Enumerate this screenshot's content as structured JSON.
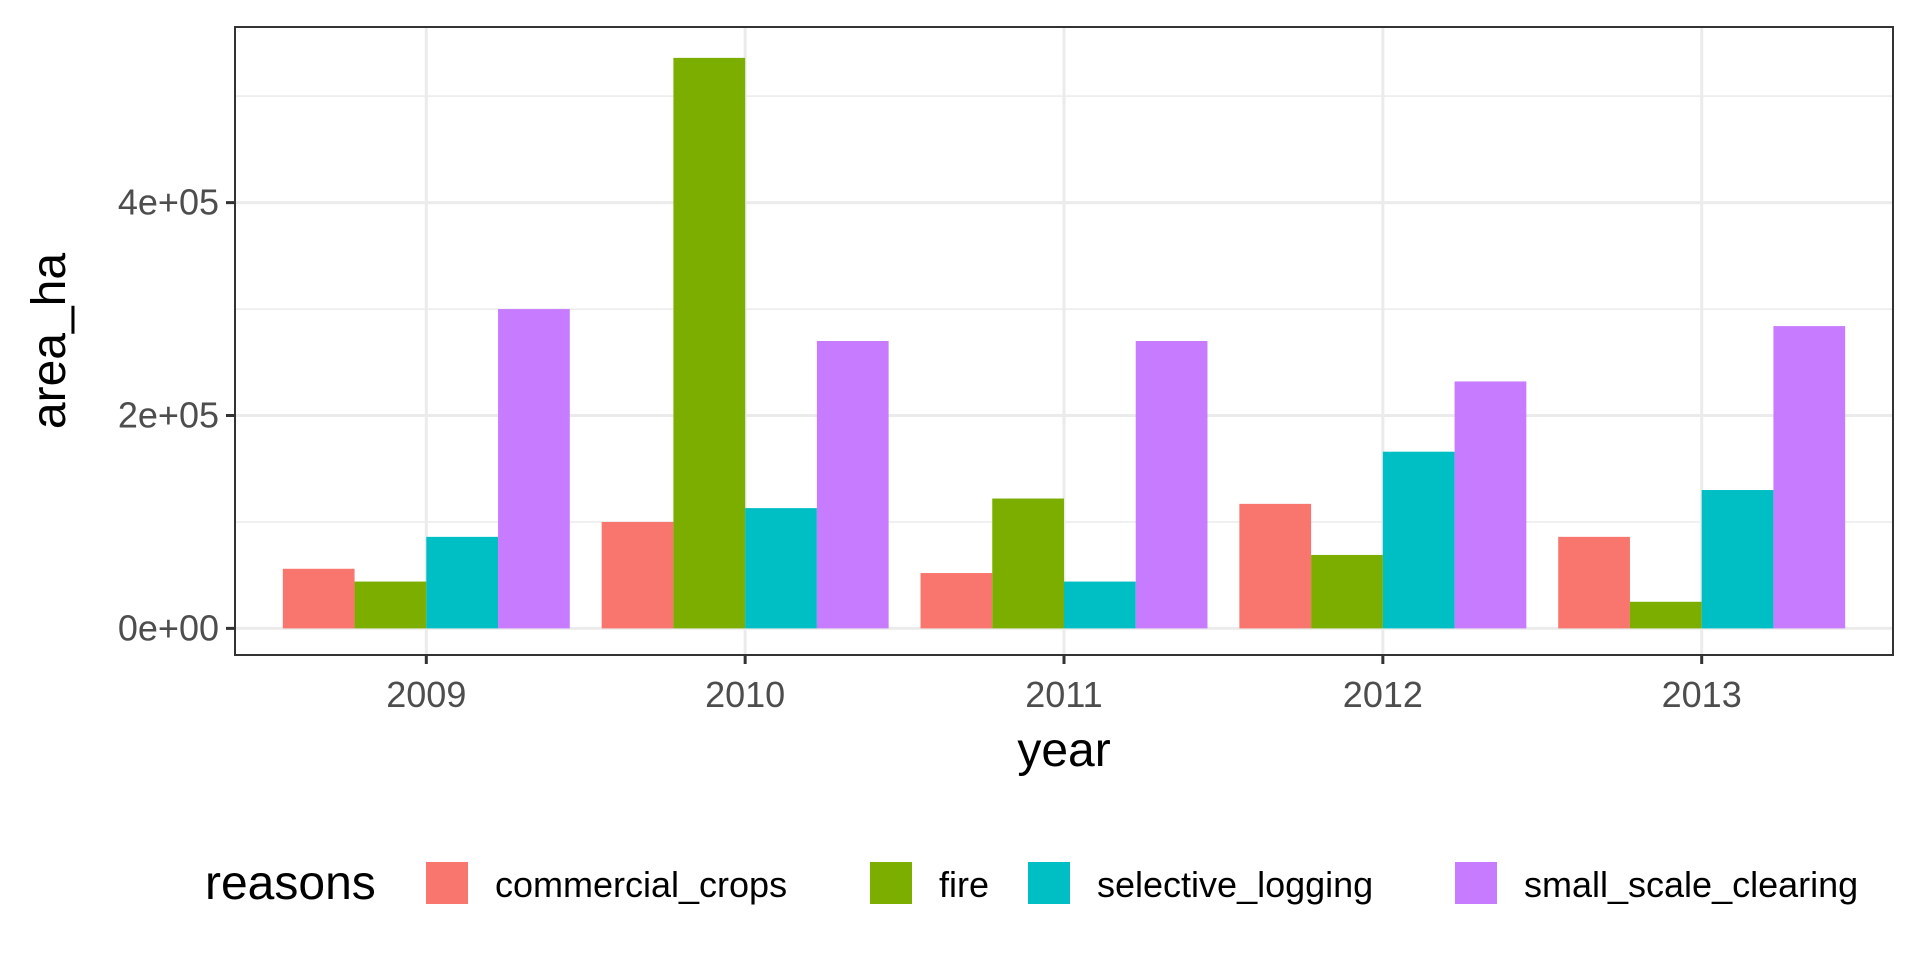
{
  "chart_data": {
    "type": "bar",
    "title": "",
    "xlabel": "year",
    "ylabel": "area_ha",
    "categories": [
      "2009",
      "2010",
      "2011",
      "2012",
      "2013"
    ],
    "series": [
      {
        "name": "commercial_crops",
        "color": "#F8766D",
        "values": [
          56000,
          100000,
          52000,
          117000,
          86000
        ]
      },
      {
        "name": "fire",
        "color": "#7CAE00",
        "values": [
          44000,
          536000,
          122000,
          69000,
          25000
        ]
      },
      {
        "name": "selective_logging",
        "color": "#00BFC4",
        "values": [
          86000,
          113000,
          44000,
          166000,
          130000
        ]
      },
      {
        "name": "small_scale_clearing",
        "color": "#C77CFF",
        "values": [
          300000,
          270000,
          270000,
          232000,
          284000
        ]
      }
    ],
    "ylim": [
      -25000,
      565000
    ],
    "yticks": [
      {
        "value": 0,
        "label": "0e+00"
      },
      {
        "value": 200000,
        "label": "2e+05"
      },
      {
        "value": 400000,
        "label": "4e+05"
      }
    ],
    "y_minor_ticks": [
      100000,
      300000,
      500000
    ],
    "legend": {
      "title": "reasons",
      "position": "bottom"
    },
    "grid": true
  }
}
